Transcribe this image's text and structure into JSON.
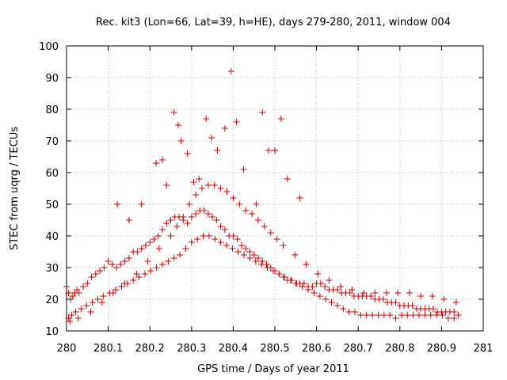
{
  "chart_data": {
    "type": "scatter",
    "title": "Rec. kit3 (Lon=66, Lat=39, h=HE), days 279-280, 2011, window 004",
    "xlabel": "GPS time / Days of year 2011",
    "ylabel": "STEC from uqrg / TECUs",
    "xlim": [
      280,
      281
    ],
    "ylim": [
      10,
      100
    ],
    "xticks": [
      280,
      280.1,
      280.2,
      280.3,
      280.4,
      280.5,
      280.6,
      280.7,
      280.8,
      280.9,
      281
    ],
    "xtick_labels": [
      "280",
      "280.1",
      "280.2",
      "280.3",
      "280.4",
      "280.5",
      "280.6",
      "280.7",
      "280.8",
      "280.9",
      "281"
    ],
    "yticks": [
      10,
      20,
      30,
      40,
      50,
      60,
      70,
      80,
      90,
      100
    ],
    "ytick_labels": [
      "10",
      "20",
      "30",
      "40",
      "50",
      "60",
      "70",
      "80",
      "90",
      "100"
    ],
    "grid": true,
    "marker": "+",
    "marker_color": "#cc0000",
    "series": [
      {
        "name": "STEC",
        "x": [
          280.0,
          280.005,
          280.01,
          280.015,
          280.02,
          280.025,
          280.03,
          280.04,
          280.05,
          280.06,
          280.07,
          280.08,
          280.09,
          280.1,
          280.11,
          280.12,
          280.13,
          280.14,
          280.15,
          280.16,
          280.17,
          280.18,
          280.19,
          280.2,
          280.21,
          280.22,
          280.23,
          280.24,
          280.25,
          280.26,
          280.27,
          280.28,
          280.29,
          280.3,
          280.31,
          280.32,
          280.33,
          280.34,
          280.35,
          280.36,
          280.37,
          280.38,
          280.39,
          280.4,
          280.41,
          280.42,
          280.43,
          280.44,
          280.45,
          280.46,
          280.47,
          280.48,
          280.49,
          280.5,
          280.51,
          280.52,
          280.53,
          280.54,
          280.55,
          280.56,
          280.57,
          280.58,
          280.59,
          280.6,
          280.61,
          280.62,
          280.63,
          280.64,
          280.65,
          280.66,
          280.67,
          280.68,
          280.69,
          280.7,
          280.71,
          280.72,
          280.73,
          280.74,
          280.75,
          280.76,
          280.77,
          280.78,
          280.79,
          280.8,
          280.81,
          280.82,
          280.83,
          280.84,
          280.85,
          280.86,
          280.87,
          280.88,
          280.89,
          280.9,
          280.91,
          280.92,
          280.93,
          280.94,
          280.005,
          280.012,
          280.022,
          280.035,
          280.048,
          280.062,
          280.075,
          280.088,
          280.104,
          280.118,
          280.132,
          280.146,
          280.16,
          280.174,
          280.188,
          280.202,
          280.216,
          280.23,
          280.244,
          280.258,
          280.272,
          280.286,
          280.3,
          280.314,
          280.328,
          280.342,
          280.356,
          280.37,
          280.384,
          280.398,
          280.412,
          280.426,
          280.44,
          280.454,
          280.468,
          280.482,
          280.496,
          280.51,
          280.524,
          280.538,
          280.552,
          280.566,
          280.58,
          280.594,
          280.608,
          280.622,
          280.636,
          280.65,
          280.664,
          280.678,
          280.692,
          280.706,
          280.72,
          280.734,
          280.748,
          280.762,
          280.776,
          280.79,
          280.804,
          280.818,
          280.832,
          280.846,
          280.86,
          280.874,
          280.888,
          280.902,
          280.916,
          280.93,
          280.008,
          280.028,
          280.058,
          280.085,
          280.112,
          280.14,
          280.168,
          280.195,
          280.222,
          280.25,
          280.265,
          280.28,
          280.295,
          280.31,
          280.325,
          280.34,
          280.355,
          280.37,
          280.385,
          280.4,
          280.415,
          280.43,
          280.445,
          280.46,
          280.475,
          280.49,
          280.505,
          280.52,
          280.548,
          280.575,
          280.603,
          280.63,
          280.658,
          280.685,
          280.713,
          280.74,
          280.768,
          280.795,
          280.823,
          280.85,
          280.878,
          280.905,
          280.935,
          280.122,
          280.15,
          280.18,
          280.215,
          280.23,
          280.24,
          280.258,
          280.268,
          280.275,
          280.29,
          280.305,
          280.318,
          280.335,
          280.348,
          280.362,
          280.38,
          280.395,
          280.408,
          280.425,
          280.455,
          280.47,
          280.485,
          280.5,
          280.515,
          280.53,
          280.56
        ],
        "y": [
          24,
          22,
          20,
          21,
          22,
          23,
          22,
          24,
          25,
          27,
          28,
          29,
          30,
          32,
          31,
          30,
          31,
          32,
          33,
          35,
          35,
          36,
          37,
          38,
          39,
          40,
          42,
          44,
          45,
          46,
          46,
          45,
          44,
          46,
          47,
          48,
          48,
          47,
          46,
          45,
          43,
          42,
          40,
          40,
          39,
          37,
          36,
          35,
          34,
          33,
          32,
          31,
          30,
          29,
          28,
          27,
          26,
          26,
          25,
          25,
          25,
          24,
          24,
          25,
          25,
          24,
          23,
          23,
          23,
          22,
          22,
          22,
          21,
          21,
          21,
          21,
          21,
          20,
          20,
          20,
          19,
          19,
          19,
          18,
          18,
          18,
          18,
          17,
          17,
          17,
          17,
          17,
          16,
          16,
          16,
          16,
          16,
          15,
          14,
          15,
          16,
          17,
          18,
          19,
          20,
          21,
          22,
          23,
          24,
          25,
          26,
          27,
          28,
          29,
          30,
          31,
          32,
          33,
          34,
          36,
          38,
          39,
          40,
          40,
          39,
          38,
          37,
          36,
          35,
          34,
          33,
          32,
          31,
          30,
          29,
          28,
          27,
          26,
          25,
          24,
          23,
          22,
          21,
          20,
          19,
          18,
          17,
          16,
          16,
          15,
          15,
          15,
          15,
          15,
          15,
          14,
          15,
          15,
          15,
          15,
          15,
          15,
          15,
          15,
          14,
          14,
          13,
          14,
          16,
          19,
          22,
          25,
          28,
          32,
          36,
          40,
          43,
          46,
          50,
          53,
          55,
          56,
          56,
          55,
          54,
          52,
          50,
          48,
          47,
          45,
          43,
          41,
          39,
          37,
          34,
          31,
          28,
          26,
          24,
          23,
          22,
          22,
          22,
          22,
          22,
          21,
          21,
          20,
          19,
          50,
          45,
          50,
          63,
          64,
          56,
          79,
          75,
          70,
          66,
          57,
          58,
          77,
          71,
          67,
          74,
          92,
          76,
          61,
          50,
          79,
          67,
          67,
          77,
          58,
          52
        ]
      }
    ]
  }
}
